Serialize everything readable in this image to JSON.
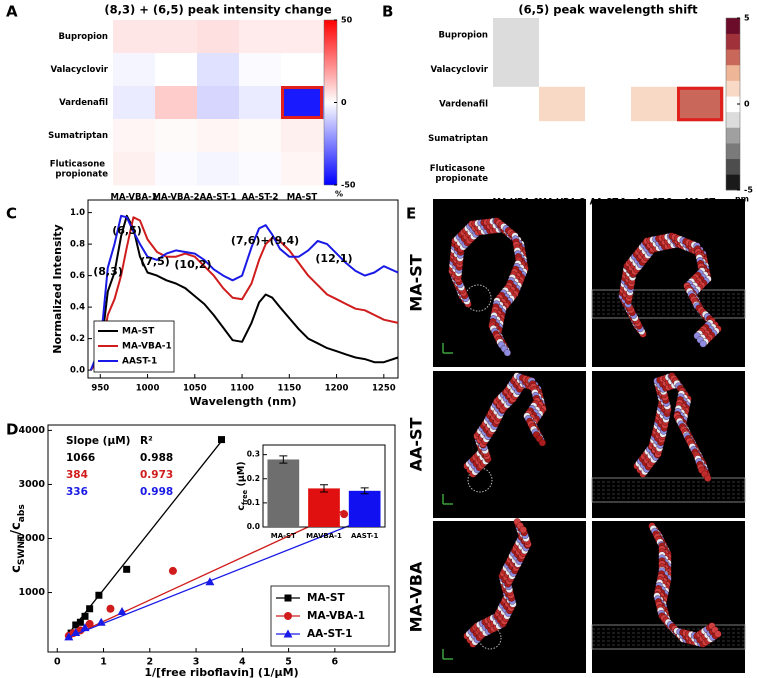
{
  "panel_labels": [
    "A",
    "B",
    "C",
    "D",
    "E"
  ],
  "chart_data": [
    {
      "type": "heatmap",
      "title": "(8,3) + (6,5) peak intensity change",
      "rows": [
        "Bupropion",
        "Valacyclovir",
        "Vardenafil",
        "Sumatriptan",
        "Fluticasone propionate"
      ],
      "columns": [
        "MA-VBA-1",
        "MA-VBA-2",
        "AA-ST-1",
        "AA-ST-2",
        "MA-ST"
      ],
      "values": [
        [
          5,
          5,
          6,
          4,
          4
        ],
        [
          -2,
          0,
          -6,
          -1,
          0
        ],
        [
          -4,
          10,
          -8,
          -4,
          -45
        ],
        [
          2,
          1,
          2,
          1,
          3
        ],
        [
          3,
          -1,
          -2,
          -1,
          2
        ]
      ],
      "zlim": [
        -50,
        50
      ],
      "zticks": [
        50,
        0,
        -50
      ],
      "zlabel": "%",
      "colors": {
        "low": "#0000ff",
        "mid": "#ffffff",
        "high": "#ff0000"
      },
      "highlight": {
        "row": 2,
        "column": 4,
        "color": "#e0201c"
      }
    },
    {
      "type": "heatmap",
      "title": "(6,5) peak wavelength shift",
      "rows": [
        "Bupropion",
        "Valacyclovir",
        "Vardenafil",
        "Sumatriptan",
        "Fluticasone propionate"
      ],
      "columns": [
        "MA-VBA-1",
        "MA-VBA-2",
        "AA-ST-1",
        "AA-ST-2",
        "MA-ST"
      ],
      "values": [
        [
          -1,
          0,
          0,
          0,
          0
        ],
        [
          -1,
          0,
          0,
          0,
          0
        ],
        [
          0,
          1,
          0,
          1,
          3
        ],
        [
          0,
          0,
          0,
          0,
          0
        ],
        [
          0,
          0,
          0,
          0,
          0
        ]
      ],
      "zlim": [
        -5,
        5
      ],
      "zticks": [
        5,
        0,
        -5
      ],
      "zlabel": "nm",
      "levels": [
        "#1a1a1a",
        "#4d4d4d",
        "#7a7a7a",
        "#a0a0a0",
        "#dcdcdc",
        "#ffffff",
        "#f7d9c6",
        "#eeb597",
        "#c9675a",
        "#a03039",
        "#6b0d2a"
      ],
      "highlight": {
        "row": 2,
        "column": 4,
        "color": "#e0201c"
      }
    },
    {
      "type": "line",
      "xlabel": "Wavelength (nm)",
      "ylabel": "Normalized Intensity",
      "x": [
        940,
        950,
        958,
        965,
        972,
        978,
        985,
        992,
        1000,
        1010,
        1020,
        1030,
        1040,
        1050,
        1060,
        1070,
        1080,
        1090,
        1100,
        1110,
        1118,
        1125,
        1132,
        1140,
        1150,
        1160,
        1170,
        1180,
        1190,
        1200,
        1210,
        1220,
        1230,
        1240,
        1250,
        1265
      ],
      "series": [
        {
          "name": "MA-ST",
          "color": "#000000",
          "values": [
            0.0,
            0.1,
            0.5,
            0.62,
            0.85,
            0.98,
            0.9,
            0.72,
            0.62,
            0.6,
            0.57,
            0.55,
            0.52,
            0.47,
            0.42,
            0.35,
            0.27,
            0.19,
            0.18,
            0.3,
            0.43,
            0.48,
            0.46,
            0.4,
            0.33,
            0.26,
            0.2,
            0.17,
            0.14,
            0.12,
            0.1,
            0.08,
            0.07,
            0.05,
            0.05,
            0.08
          ]
        },
        {
          "name": "MA-VBA-1",
          "color": "#d01c1c",
          "values": [
            0.0,
            0.08,
            0.35,
            0.45,
            0.6,
            0.78,
            0.97,
            0.95,
            0.83,
            0.75,
            0.72,
            0.72,
            0.74,
            0.72,
            0.66,
            0.6,
            0.52,
            0.46,
            0.45,
            0.55,
            0.7,
            0.8,
            0.84,
            0.82,
            0.76,
            0.68,
            0.6,
            0.54,
            0.48,
            0.45,
            0.42,
            0.39,
            0.38,
            0.35,
            0.32,
            0.3
          ]
        },
        {
          "name": "AAST-1",
          "color": "#1a1ae6",
          "values": [
            0.0,
            0.15,
            0.65,
            0.8,
            0.98,
            0.97,
            0.88,
            0.8,
            0.72,
            0.7,
            0.74,
            0.76,
            0.75,
            0.74,
            0.7,
            0.64,
            0.6,
            0.57,
            0.6,
            0.78,
            0.9,
            0.92,
            0.86,
            0.77,
            0.72,
            0.72,
            0.76,
            0.82,
            0.8,
            0.74,
            0.68,
            0.63,
            0.6,
            0.62,
            0.66,
            0.62
          ]
        }
      ],
      "xlim": [
        937,
        1265
      ],
      "xticks": [
        950,
        1000,
        1050,
        1100,
        1150,
        1200,
        1250
      ],
      "ylim": [
        -0.05,
        1.08
      ],
      "yticks": [
        {
          "value": 0,
          "label": "0.0"
        },
        0.2,
        0.4,
        0.6,
        0.8,
        {
          "value": 1,
          "label": "1.0"
        }
      ],
      "annotations": [
        "(8,3)",
        "(6,5)",
        "(7,5)",
        "(10,2)",
        "(7,6)+(9,4)",
        "(12,1)"
      ],
      "legend": "lower left"
    },
    {
      "type": "scatter",
      "xlabel": "1/[free riboflavin] (1/µM)",
      "ylabel_parts": [
        {
          "text": "c"
        },
        {
          "text": "SWNT",
          "sub": true
        },
        {
          "text": "/c"
        },
        {
          "text": "abs",
          "sub": true
        }
      ],
      "series": [
        {
          "name": "MA-ST",
          "color": "#000000",
          "marker": "square",
          "x": [
            0.3,
            0.4,
            0.5,
            0.6,
            0.7,
            0.9,
            1.5,
            3.55
          ],
          "values": [
            250,
            400,
            450,
            560,
            700,
            950,
            1430,
            3830
          ],
          "fit": {
            "x": [
              0.2,
              3.55
            ],
            "y": [
              190,
              3800
            ]
          },
          "slope": 1066,
          "r2": 0.988
        },
        {
          "name": "MA-VBA-1",
          "color": "#d01c1c",
          "marker": "circle",
          "x": [
            0.25,
            0.35,
            0.5,
            0.7,
            1.15,
            2.5,
            6.2
          ],
          "values": [
            200,
            250,
            300,
            420,
            700,
            1400,
            2450
          ],
          "fit": {
            "x": [
              0.2,
              6.2
            ],
            "y": [
              150,
              2520
            ]
          },
          "slope": 384,
          "r2": 0.973
        },
        {
          "name": "AA-ST-1",
          "color": "#1a1ae6",
          "marker": "triangle",
          "x": [
            0.25,
            0.4,
            0.6,
            0.95,
            1.4,
            3.3,
            6.7
          ],
          "values": [
            180,
            260,
            350,
            450,
            650,
            1200,
            2380
          ],
          "fit": {
            "x": [
              0.2,
              6.7
            ],
            "y": [
              160,
              2370
            ]
          },
          "slope": 336,
          "r2": 0.998
        }
      ],
      "stats_headers": [
        "Slope (µM)",
        "R²"
      ],
      "xlim": [
        -0.2,
        7.3
      ],
      "xticks": [
        0,
        1,
        2,
        3,
        4,
        5,
        6
      ],
      "ylim": [
        -100,
        4100
      ],
      "yticks": [
        1000,
        2000,
        3000,
        4000
      ],
      "legend": "lower right"
    },
    {
      "type": "bar",
      "ylabel_parts": [
        {
          "text": "c"
        },
        {
          "text": "free",
          "sub": true
        },
        {
          "text": " (µM)"
        }
      ],
      "categories": [
        "MA-ST",
        "MAVBA-1",
        "AAST-1"
      ],
      "values": [
        0.28,
        0.16,
        0.15
      ],
      "errors": [
        0.015,
        0.015,
        0.012
      ],
      "colors": [
        "#6e6e6e",
        "#e01010",
        "#1010f0"
      ],
      "ylim": [
        0,
        0.34
      ],
      "yticks": [
        {
          "value": 0,
          "label": "0.0"
        },
        0.1,
        0.2,
        0.3
      ]
    }
  ],
  "simulation": {
    "row_labels": [
      "MA-ST",
      "AA-ST",
      "MA-VBA"
    ]
  }
}
